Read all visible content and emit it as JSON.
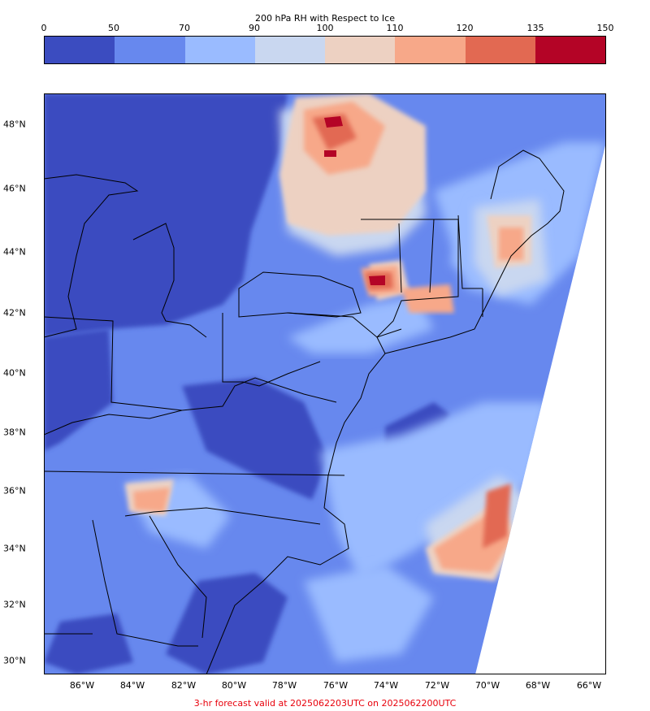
{
  "colorbar": {
    "title": "200 hPa RH with Respect to Ice",
    "ticks": [
      "0",
      "50",
      "70",
      "90",
      "100",
      "110",
      "120",
      "135",
      "150"
    ],
    "colors": [
      "#3b4cc0",
      "#6788ee",
      "#9abbff",
      "#c9d7f0",
      "#edd1c2",
      "#f7a889",
      "#e26952",
      "#b40426"
    ]
  },
  "latitude_labels": [
    "48°N",
    "46°N",
    "44°N",
    "42°N",
    "40°N",
    "38°N",
    "36°N",
    "34°N",
    "32°N",
    "30°N"
  ],
  "longitude_labels": [
    "86°W",
    "84°W",
    "82°W",
    "80°W",
    "78°W",
    "76°W",
    "74°W",
    "72°W",
    "70°W",
    "68°W",
    "66°W"
  ],
  "footer": "3-hr forecast valid at 2025062203UTC on 2025062200UTC"
}
